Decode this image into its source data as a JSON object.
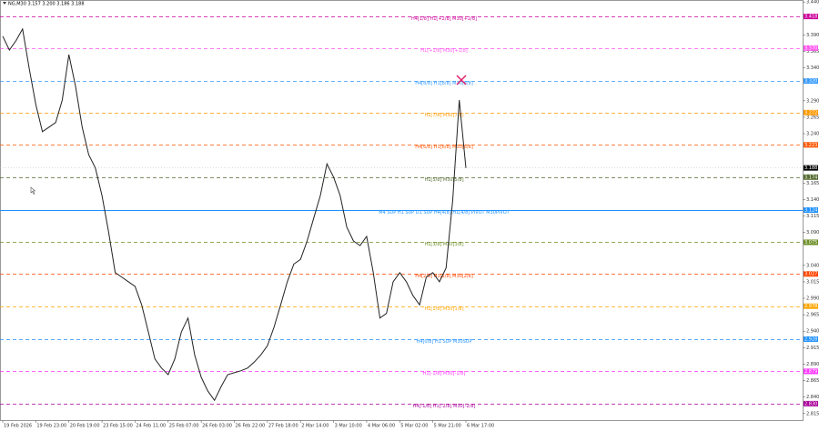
{
  "chart_data": {
    "type": "line",
    "title": "NG,M30  3.157 3.200 3.186 3.188",
    "categories": [
      "19 Feb 2026",
      null,
      null,
      null,
      null,
      "19 Feb 23:00",
      null,
      null,
      null,
      null,
      "20 Feb 19:00",
      null,
      null,
      null,
      null,
      "23 Feb 15:00",
      null,
      null,
      null,
      null,
      "24 Feb 11:00",
      null,
      null,
      null,
      null,
      "25 Feb 07:00",
      null,
      null,
      null,
      null,
      "26 Feb 03:00",
      null,
      null,
      null,
      null,
      "26 Feb 22:00",
      null,
      null,
      null,
      null,
      "27 Feb 18:00",
      null,
      null,
      null,
      null,
      "2 Mar 14:00",
      null,
      null,
      null,
      null,
      "3 Mar 10:00",
      null,
      null,
      null,
      null,
      "4 Mar 06:00",
      null,
      null,
      null,
      null,
      "5 Mar 02:00",
      null,
      null,
      null,
      null,
      "5 Mar 21:00",
      null,
      null,
      null,
      null,
      "6 Mar 17:00"
    ],
    "series": [
      {
        "color": "#222222",
        "values": [
          3.388,
          3.367,
          3.381,
          3.399,
          3.339,
          3.284,
          3.243,
          3.25,
          3.257,
          3.291,
          3.36,
          3.312,
          3.25,
          3.208,
          3.188,
          3.146,
          3.091,
          3.029,
          3.022,
          3.015,
          3.008,
          2.98,
          2.939,
          2.898,
          2.884,
          2.874,
          2.898,
          2.939,
          2.96,
          2.904,
          2.87,
          2.849,
          2.835,
          2.856,
          2.874,
          2.877,
          2.88,
          2.884,
          2.893,
          2.904,
          2.918,
          2.946,
          2.98,
          3.015,
          3.042,
          3.049,
          3.077,
          3.112,
          3.146,
          3.194,
          3.174,
          3.146,
          3.098,
          3.077,
          3.07,
          3.084,
          3.029,
          2.96,
          2.967,
          3.015,
          3.029,
          3.015,
          2.994,
          2.98,
          3.022,
          3.029,
          3.015,
          3.036,
          3.139,
          3.291,
          3.188
        ]
      }
    ],
    "ylim": [
      2.805,
      3.443
    ],
    "yticks": [
      {
        "value": 3.44,
        "label": "3.440"
      },
      {
        "value": 3.39,
        "label": "3.390"
      },
      {
        "value": 3.365,
        "label": "3.365"
      },
      {
        "value": 3.34,
        "label": "3.340"
      },
      {
        "value": 3.29,
        "label": "3.290"
      },
      {
        "value": 3.265,
        "label": "3.265"
      },
      {
        "value": 3.24,
        "label": "3.240"
      },
      {
        "value": 3.165,
        "label": "3.165"
      },
      {
        "value": 3.14,
        "label": "3.140"
      },
      {
        "value": 3.115,
        "label": "3.115"
      },
      {
        "value": 3.09,
        "label": "3.090"
      },
      {
        "value": 3.04,
        "label": "3.040"
      },
      {
        "value": 3.015,
        "label": "3.015"
      },
      {
        "value": 2.99,
        "label": "2.990"
      },
      {
        "value": 2.965,
        "label": "2.965"
      },
      {
        "value": 2.94,
        "label": "2.940"
      },
      {
        "value": 2.915,
        "label": "2.915"
      },
      {
        "value": 2.89,
        "label": "2.890"
      },
      {
        "value": 2.865,
        "label": "2.865"
      },
      {
        "value": 2.84,
        "label": "2.840"
      },
      {
        "value": 2.815,
        "label": "2.815"
      }
    ],
    "levels": [
      {
        "label": "H4[1/8] H1[+2/8] M30[+2/8]",
        "value": 3.418,
        "tag": "3.418",
        "color": "#cc0099",
        "style": "dashed"
      },
      {
        "label": "H1[+1/8] M30[+1/8]",
        "value": 3.37,
        "tag": "3.370",
        "color": "#ff55ee",
        "style": "dashed"
      },
      {
        "label": "H4[8/8] H1[8/8] M30[8/8]",
        "value": 3.32,
        "tag": "3.320",
        "color": "#3399ff",
        "style": "dashed"
      },
      {
        "label": "H1[7/8] M30[7/8]",
        "value": 3.272,
        "tag": "3.272",
        "color": "#ff9900",
        "style": "dashed"
      },
      {
        "label": "H4[6/8] H1[6/8] M30[6/8]",
        "value": 3.223,
        "tag": "3.223",
        "color": "#ff5500",
        "style": "dashed"
      },
      {
        "label": "H1[5/8] M30[5/8]",
        "value": 3.174,
        "tag": "3.174",
        "color": "#556b2f",
        "style": "dashed"
      },
      {
        "label": "M4 SUP H1 SUP D1 SUP H4[4/8] H1[4/8] PIVOT M30PIVOT",
        "value": 3.124,
        "tag": "3.124",
        "color": "#1e90ff",
        "style": "solid"
      },
      {
        "label": "H1[3/8] M30[3/8]",
        "value": 3.075,
        "tag": "3.075",
        "color": "#6b8e23",
        "style": "dashed"
      },
      {
        "label": "H4[2/8] H1[2/8] M30[2/8]",
        "value": 3.027,
        "tag": "3.027",
        "color": "#ff4500",
        "style": "dashed"
      },
      {
        "label": "H1[1/8] M30[1/8]",
        "value": 2.978,
        "tag": "2.978",
        "color": "#ffa500",
        "style": "dashed"
      },
      {
        "label": "H4[0/8] H1 SUP M30SUP",
        "value": 2.928,
        "tag": "2.928",
        "color": "#1e90ff",
        "style": "dashed"
      },
      {
        "label": "H1[-1/8] M30[-1/8]",
        "value": 2.879,
        "tag": "2.879",
        "color": "#ff33ff",
        "style": "dashed"
      },
      {
        "label": "H4[-1/8] H1[-2/8] M30[-2/8]",
        "value": 2.83,
        "tag": "2.830",
        "color": "#aa0099",
        "style": "dashed"
      }
    ],
    "current": {
      "value": 3.188,
      "tag": "3.188",
      "color": "#000000"
    }
  }
}
